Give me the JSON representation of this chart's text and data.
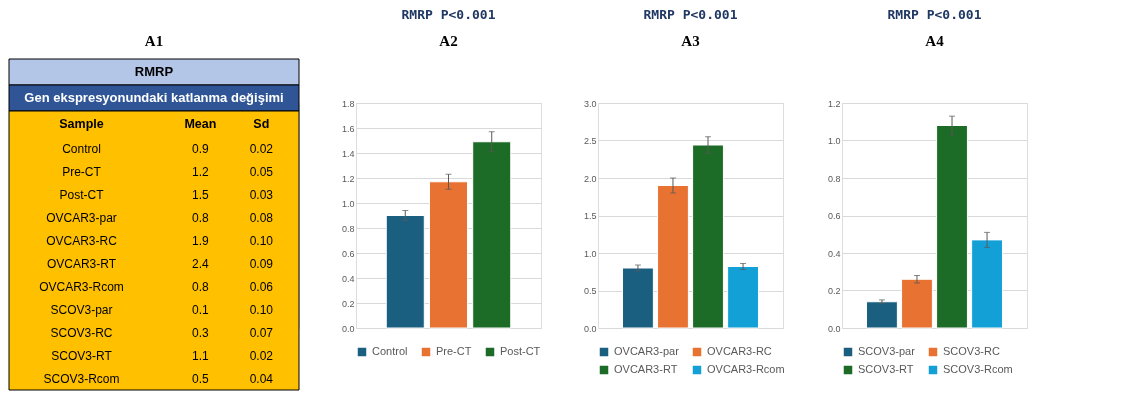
{
  "chart_data": [
    {
      "type": "other",
      "title": "RMRP",
      "subtitle": "Gen ekspresyonundaki katlanma değişimi",
      "ylabel": "Sample",
      "annotations": [
        "A1"
      ],
      "data_labels": true,
      "categories": [
        "Control",
        "Pre-CT",
        "Post-CT",
        "OVCAR3-par",
        "OVCAR3-RC",
        "OVCAR3-RT",
        "OVCAR3-Rcom",
        "SCOV3-par",
        "SCOV3-RC",
        "SCOV3-RT",
        "SCOV3-Rcom"
      ],
      "series": [
        {
          "name": "Mean",
          "values": [
            0.9,
            1.2,
            1.5,
            0.8,
            1.9,
            2.4,
            0.8,
            0.1,
            0.3,
            1.1,
            0.5
          ],
          "value_labels": [
            "0.9",
            "1.2",
            "1.5",
            "0.8",
            "1.9",
            "2.4",
            "0.8",
            "0.1",
            "0.3",
            "1.1",
            "0.5"
          ]
        },
        {
          "name": "Sd",
          "values": [
            0.02,
            0.05,
            0.03,
            0.08,
            0.1,
            0.09,
            0.06,
            0.1,
            0.07,
            0.02,
            0.04
          ],
          "value_labels": [
            "0.02",
            "0.05",
            "0.03",
            "0.08",
            "0.10",
            "0.09",
            "0.06",
            "0.10",
            "0.07",
            "0.02",
            "0.04"
          ]
        }
      ]
    },
    {
      "type": "bar",
      "title": "RMRP   P<0.001",
      "annotations": [
        "A2"
      ],
      "categories": [
        null
      ],
      "ylim": [
        0,
        1.8
      ],
      "yticks": [
        {
          "value": 0,
          "label": "0.0"
        },
        0.2,
        0.4,
        0.6,
        0.8,
        {
          "value": 1,
          "label": "1.0"
        },
        1.2,
        1.4,
        1.6,
        1.8
      ],
      "grid": "y",
      "legend": "bottom",
      "tick_labels": "y",
      "series": [
        {
          "name": "Control",
          "color": "#1a5f80",
          "values": [
            0.9
          ],
          "errors": [
            0.04
          ]
        },
        {
          "name": "Pre-CT",
          "color": "#e87232",
          "values": [
            1.17
          ],
          "errors": [
            0.06
          ]
        },
        {
          "name": "Post-CT",
          "color": "#1c6b27",
          "values": [
            1.49
          ],
          "errors": [
            0.08
          ]
        }
      ]
    },
    {
      "type": "bar",
      "title": "RMRP   P<0.001",
      "annotations": [
        "A3"
      ],
      "categories": [
        null
      ],
      "ylim": [
        0,
        3
      ],
      "yticks": [
        {
          "value": 0,
          "label": "0.0"
        },
        0.5,
        {
          "value": 1,
          "label": "1.0"
        },
        1.5,
        {
          "value": 2,
          "label": "2.0"
        },
        2.5,
        {
          "value": 3,
          "label": "3.0"
        }
      ],
      "grid": "y",
      "legend": "bottom",
      "tick_labels": "y",
      "series": [
        {
          "name": "OVCAR3-par",
          "color": "#1a5f80",
          "values": [
            0.8
          ],
          "errors": [
            0.04
          ]
        },
        {
          "name": "OVCAR3-RC",
          "color": "#e87232",
          "values": [
            1.9
          ],
          "errors": [
            0.1
          ]
        },
        {
          "name": "OVCAR3-RT",
          "color": "#1c6b27",
          "values": [
            2.44
          ],
          "errors": [
            0.11
          ]
        },
        {
          "name": "OVCAR3-Rcom",
          "color": "#13a0d6",
          "values": [
            0.82
          ],
          "errors": [
            0.04
          ]
        }
      ]
    },
    {
      "type": "bar",
      "title": "RMRP   P<0.001",
      "annotations": [
        "A4"
      ],
      "categories": [
        null
      ],
      "ylim": [
        0,
        1.2
      ],
      "yticks": [
        {
          "value": 0,
          "label": "0.0"
        },
        0.2,
        0.4,
        0.6,
        0.8,
        {
          "value": 1,
          "label": "1.0"
        },
        1.2
      ],
      "grid": "y",
      "legend": "bottom",
      "tick_labels": "y",
      "series": [
        {
          "name": "SCOV3-par",
          "color": "#1a5f80",
          "values": [
            0.14
          ],
          "errors": [
            0.01
          ]
        },
        {
          "name": "SCOV3-RC",
          "color": "#e87232",
          "values": [
            0.26
          ],
          "errors": [
            0.02
          ]
        },
        {
          "name": "SCOV3-RT",
          "color": "#1c6b27",
          "values": [
            1.08
          ],
          "errors": [
            0.05
          ]
        },
        {
          "name": "SCOV3-Rcom",
          "color": "#13a0d6",
          "values": [
            0.47
          ],
          "errors": [
            0.04
          ]
        }
      ]
    }
  ]
}
